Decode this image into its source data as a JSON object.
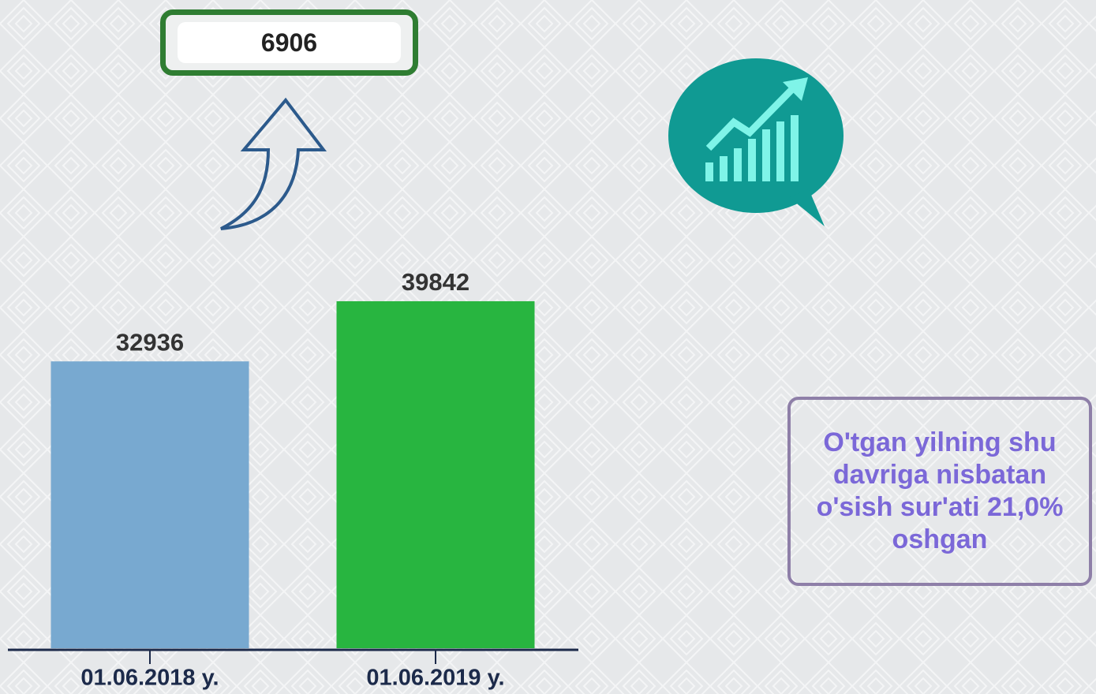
{
  "chart_data": {
    "type": "bar",
    "categories": [
      "01.06.2018 y.",
      "01.06.2019 y."
    ],
    "values": [
      32936,
      39842
    ],
    "colors": [
      "#78a9d0",
      "#28b540"
    ],
    "ylim": [
      0,
      45000
    ],
    "difference": "6906",
    "note": "O'tgan yilning shu davriga nisbatan o'sish sur'ati 21,0% oshgan"
  }
}
